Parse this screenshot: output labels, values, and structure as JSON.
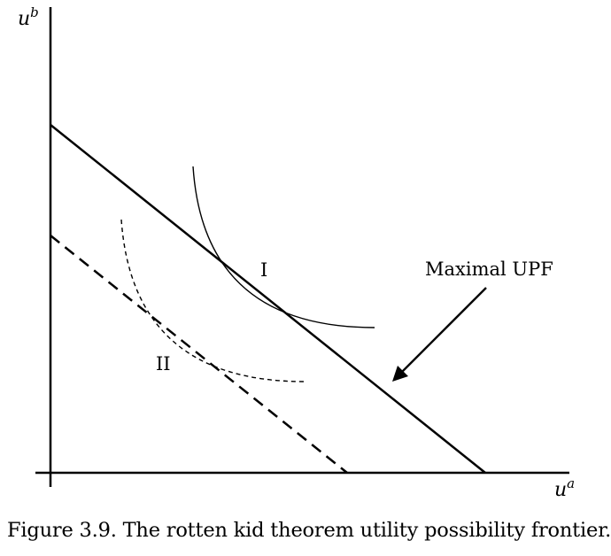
{
  "axes": {
    "y_label_base": "u",
    "y_label_sup": "b",
    "x_label_base": "u",
    "x_label_sup": "a"
  },
  "curves": {
    "maximal_upf": "solid",
    "secondary_upf": "dashed",
    "indifference_I": "solid",
    "indifference_II": "dashed"
  },
  "labels": {
    "point_I": "I",
    "point_II": "II",
    "maximal_upf_annotation": "Maximal UPF"
  },
  "caption": "Figure 3.9.  The rotten kid theorem utility possibility frontier."
}
